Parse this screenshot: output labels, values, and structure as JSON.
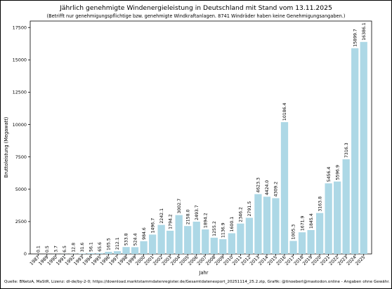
{
  "chart_data": {
    "type": "bar",
    "title": "Jährlich genehmigte Windenergieleistung in Deutschland mit Stand vom 13.11.2025",
    "subtitle": "(Betrifft nur genehmigungspflichtige bzw. genehmigte Windkraftanlagen. 8741 Windräder haben keine Genehmigungsangaben.)",
    "xlabel": "Jahr",
    "ylabel": "Bruttoleistung (Megawatt)",
    "ylim": [
      0,
      18000
    ],
    "yticks": [
      0,
      2500,
      5000,
      7500,
      10000,
      12500,
      15000,
      17500
    ],
    "categories": [
      "1987",
      "1989",
      "1990",
      "1991",
      "1992",
      "1993",
      "1994",
      "1995",
      "1996",
      "1997",
      "1998",
      "1999",
      "2000",
      "2001",
      "2002",
      "2003",
      "2004",
      "2005",
      "2006",
      "2007",
      "2008",
      "2009",
      "2010",
      "2011",
      "2012",
      "2013",
      "2014",
      "2015",
      "2016",
      "2017",
      "2018",
      "2019",
      "2020",
      "2021",
      "2022",
      "2023",
      "2024",
      "2025"
    ],
    "values": [
      0.1,
      0.5,
      3.7,
      6.5,
      12.8,
      31.6,
      56.1,
      65.6,
      165.5,
      212.1,
      533.8,
      524.4,
      984.6,
      1496.7,
      2242.1,
      1794.2,
      3002.7,
      2158.0,
      2493.7,
      1894.2,
      1255.2,
      1136.9,
      1600.1,
      2346.2,
      2791.5,
      4623.3,
      4424.0,
      4309.2,
      10186.4,
      1005.3,
      1671.9,
      1845.4,
      3163.8,
      5456.4,
      5596.9,
      7316.3,
      15899.7,
      16386.1
    ],
    "value_labels": [
      "0.1",
      "0.5",
      "3.7",
      "6.5",
      "12.8",
      "31.6",
      "56.1",
      "65.6",
      "165.5",
      "212.1",
      "533.8",
      "524.4",
      "984.6",
      "1496.7",
      "2242.1",
      "1794.2",
      "3002.7",
      "2158.0",
      "2493.7",
      "1894.2",
      "1255.2",
      "1136.9",
      "1600.1",
      "2346.2",
      "2791.5",
      "4623.3",
      "4424.0",
      "4309.2",
      "10186.4",
      "1005.3",
      "1671.9",
      "1845.4",
      "3163.8",
      "5456.4",
      "5596.9",
      "7316.3",
      "15899.7",
      "16386.1"
    ],
    "bar_color": "#add8e6",
    "grid": false,
    "legend": "none"
  },
  "footer": "Quelle: BNetzA, MaStR, Lizenz: dl-de/by-2-0; https://download.marktstammdatenregister.de/Gesamtdatenexport_20251114_25.2.zip, Grafik: @tinoeberl@mastodon.online - Angaben ohne Gewähr."
}
